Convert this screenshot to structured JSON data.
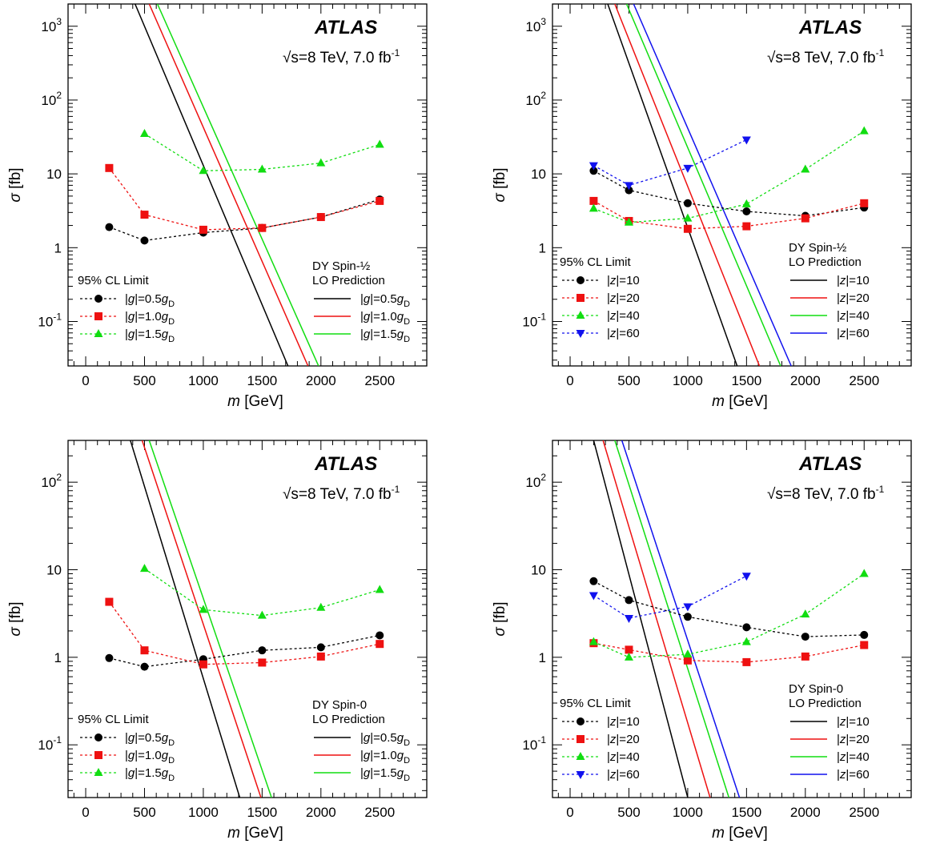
{
  "chart_data": [
    {
      "type": "line",
      "title": "",
      "experiment_label": "ATLAS",
      "energy_label": "√s=8 TeV, 7.0 fb⁻¹",
      "xlabel": "m [GeV]",
      "ylabel": "σ [fb]",
      "xlim": [
        -150,
        2900
      ],
      "ylim": [
        0.025,
        2000
      ],
      "y_scale": "log",
      "x_ticks": [
        0,
        500,
        1000,
        1500,
        2000,
        2500
      ],
      "y_tick_labels": [
        {
          "value": 0.1,
          "label": "10⁻¹"
        },
        {
          "value": 1,
          "label": "1"
        },
        {
          "value": 10,
          "label": "10"
        },
        {
          "value": 100,
          "label": "10²"
        },
        {
          "value": 1000,
          "label": "10³"
        }
      ],
      "limit_legend_title": "95% CL Limit",
      "prediction_legend_title": [
        "DY Spin-½",
        "LO Prediction"
      ],
      "limits": [
        {
          "name": "|g|=0.5g_D",
          "color": "#000000",
          "marker": "circle",
          "x": [
            200,
            500,
            1000,
            1500,
            2000,
            2500
          ],
          "y": [
            1.9,
            1.25,
            1.6,
            1.85,
            2.6,
            4.5
          ]
        },
        {
          "name": "|g|=1.0g_D",
          "color": "#ee1111",
          "marker": "square",
          "x": [
            200,
            500,
            1000,
            1500,
            2000,
            2500
          ],
          "y": [
            12,
            2.8,
            1.75,
            1.85,
            2.6,
            4.3
          ]
        },
        {
          "name": "|g|=1.5g_D",
          "color": "#11dd11",
          "marker": "triangle-up",
          "x": [
            500,
            1000,
            1500,
            2000,
            2500
          ],
          "y": [
            35,
            11,
            11.5,
            14,
            25
          ]
        }
      ],
      "predictions": [
        {
          "name": "|g|=0.5g_D",
          "color": "#000000",
          "x": [
            420,
            1720
          ],
          "y": [
            2000,
            0.025
          ]
        },
        {
          "name": "|g|=1.0g_D",
          "color": "#ee1111",
          "x": [
            540,
            1890
          ],
          "y": [
            2000,
            0.025
          ]
        },
        {
          "name": "|g|=1.5g_D",
          "color": "#11dd11",
          "x": [
            610,
            1980
          ],
          "y": [
            2000,
            0.025
          ]
        }
      ]
    },
    {
      "type": "line",
      "title": "",
      "experiment_label": "ATLAS",
      "energy_label": "√s=8 TeV, 7.0 fb⁻¹",
      "xlabel": "m [GeV]",
      "ylabel": "σ [fb]",
      "xlim": [
        -150,
        2900
      ],
      "ylim": [
        0.025,
        2000
      ],
      "y_scale": "log",
      "x_ticks": [
        0,
        500,
        1000,
        1500,
        2000,
        2500
      ],
      "y_tick_labels": [
        {
          "value": 0.1,
          "label": "10⁻¹"
        },
        {
          "value": 1,
          "label": "1"
        },
        {
          "value": 10,
          "label": "10"
        },
        {
          "value": 100,
          "label": "10²"
        },
        {
          "value": 1000,
          "label": "10³"
        }
      ],
      "limit_legend_title": "95% CL Limit",
      "prediction_legend_title": [
        "DY Spin-½",
        "LO Prediction"
      ],
      "limits": [
        {
          "name": "|z|=10",
          "color": "#000000",
          "marker": "circle",
          "x": [
            200,
            500,
            1000,
            1500,
            2000,
            2500
          ],
          "y": [
            11,
            6,
            4,
            3.1,
            2.7,
            3.5
          ]
        },
        {
          "name": "|z|=20",
          "color": "#ee1111",
          "marker": "square",
          "x": [
            200,
            500,
            1000,
            1500,
            2000,
            2500
          ],
          "y": [
            4.3,
            2.3,
            1.8,
            1.95,
            2.5,
            4
          ]
        },
        {
          "name": "|z|=40",
          "color": "#11dd11",
          "marker": "triangle-up",
          "x": [
            200,
            500,
            1000,
            1500,
            2000,
            2500
          ],
          "y": [
            3.4,
            2.2,
            2.5,
            3.9,
            11.5,
            38
          ]
        },
        {
          "name": "|z|=60",
          "color": "#1111ee",
          "marker": "triangle-down",
          "x": [
            200,
            500,
            1000,
            1500
          ],
          "y": [
            13,
            7,
            12,
            29
          ]
        }
      ],
      "predictions": [
        {
          "name": "|z|=10",
          "color": "#000000",
          "x": [
            320,
            1420
          ],
          "y": [
            2000,
            0.025
          ]
        },
        {
          "name": "|z|=20",
          "color": "#ee1111",
          "x": [
            380,
            1610
          ],
          "y": [
            2000,
            0.025
          ]
        },
        {
          "name": "|z|=40",
          "color": "#11dd11",
          "x": [
            480,
            1790
          ],
          "y": [
            2000,
            0.025
          ]
        },
        {
          "name": "|z|=60",
          "color": "#1111ee",
          "x": [
            540,
            1880
          ],
          "y": [
            2000,
            0.025
          ]
        }
      ]
    },
    {
      "type": "line",
      "title": "",
      "experiment_label": "ATLAS",
      "energy_label": "√s=8 TeV, 7.0 fb⁻¹",
      "xlabel": "m [GeV]",
      "ylabel": "σ [fb]",
      "xlim": [
        -150,
        2900
      ],
      "ylim": [
        0.025,
        300
      ],
      "y_scale": "log",
      "x_ticks": [
        0,
        500,
        1000,
        1500,
        2000,
        2500
      ],
      "y_tick_labels": [
        {
          "value": 0.1,
          "label": "10⁻¹"
        },
        {
          "value": 1,
          "label": "1"
        },
        {
          "value": 10,
          "label": "10"
        },
        {
          "value": 100,
          "label": "10²"
        }
      ],
      "limit_legend_title": "95% CL Limit",
      "prediction_legend_title": [
        "DY Spin-0",
        "LO Prediction"
      ],
      "limits": [
        {
          "name": "|g|=0.5g_D",
          "color": "#000000",
          "marker": "circle",
          "x": [
            200,
            500,
            1000,
            1500,
            2000,
            2500
          ],
          "y": [
            0.98,
            0.78,
            0.95,
            1.2,
            1.3,
            1.78
          ]
        },
        {
          "name": "|g|=1.0g_D",
          "color": "#ee1111",
          "marker": "square",
          "x": [
            200,
            500,
            1000,
            1500,
            2000,
            2500
          ],
          "y": [
            4.3,
            1.2,
            0.83,
            0.87,
            1.02,
            1.42
          ]
        },
        {
          "name": "|g|=1.5g_D",
          "color": "#11dd11",
          "marker": "triangle-up",
          "x": [
            500,
            1000,
            1500,
            2000,
            2500
          ],
          "y": [
            10.3,
            3.5,
            3,
            3.7,
            5.9
          ]
        }
      ],
      "predictions": [
        {
          "name": "|g|=0.5g_D",
          "color": "#000000",
          "x": [
            380,
            1310
          ],
          "y": [
            300,
            0.025
          ]
        },
        {
          "name": "|g|=1.0g_D",
          "color": "#ee1111",
          "x": [
            480,
            1490
          ],
          "y": [
            300,
            0.025
          ]
        },
        {
          "name": "|g|=1.5g_D",
          "color": "#11dd11",
          "x": [
            540,
            1580
          ],
          "y": [
            300,
            0.025
          ]
        }
      ]
    },
    {
      "type": "line",
      "title": "",
      "experiment_label": "ATLAS",
      "energy_label": "√s=8 TeV, 7.0 fb⁻¹",
      "xlabel": "m [GeV]",
      "ylabel": "σ [fb]",
      "xlim": [
        -150,
        2900
      ],
      "ylim": [
        0.025,
        300
      ],
      "y_scale": "log",
      "x_ticks": [
        0,
        500,
        1000,
        1500,
        2000,
        2500
      ],
      "y_tick_labels": [
        {
          "value": 0.1,
          "label": "10⁻¹"
        },
        {
          "value": 1,
          "label": "1"
        },
        {
          "value": 10,
          "label": "10"
        },
        {
          "value": 100,
          "label": "10²"
        }
      ],
      "limit_legend_title": "95% CL Limit",
      "prediction_legend_title": [
        "DY Spin-0",
        "LO Prediction"
      ],
      "limits": [
        {
          "name": "|z|=10",
          "color": "#000000",
          "marker": "circle",
          "x": [
            200,
            500,
            1000,
            1500,
            2000,
            2500
          ],
          "y": [
            7.4,
            4.5,
            2.9,
            2.2,
            1.72,
            1.8
          ]
        },
        {
          "name": "|z|=20",
          "color": "#ee1111",
          "marker": "square",
          "x": [
            200,
            500,
            1000,
            1500,
            2000,
            2500
          ],
          "y": [
            1.45,
            1.22,
            0.92,
            0.88,
            1.02,
            1.38
          ]
        },
        {
          "name": "|z|=40",
          "color": "#11dd11",
          "marker": "triangle-up",
          "x": [
            200,
            500,
            1000,
            1500,
            2000,
            2500
          ],
          "y": [
            1.5,
            1,
            1.08,
            1.5,
            3.1,
            9
          ]
        },
        {
          "name": "|z|=60",
          "color": "#1111ee",
          "marker": "triangle-down",
          "x": [
            200,
            500,
            1000,
            1500
          ],
          "y": [
            5.1,
            2.8,
            3.8,
            8.5
          ]
        }
      ],
      "predictions": [
        {
          "name": "|z|=10",
          "color": "#000000",
          "x": [
            200,
            1000
          ],
          "y": [
            300,
            0.025
          ]
        },
        {
          "name": "|z|=20",
          "color": "#ee1111",
          "x": [
            280,
            1190
          ],
          "y": [
            300,
            0.025
          ]
        },
        {
          "name": "|z|=40",
          "color": "#11dd11",
          "x": [
            380,
            1350
          ],
          "y": [
            300,
            0.025
          ]
        },
        {
          "name": "|z|=60",
          "color": "#1111ee",
          "x": [
            440,
            1440
          ],
          "y": [
            300,
            0.025
          ]
        }
      ]
    }
  ]
}
